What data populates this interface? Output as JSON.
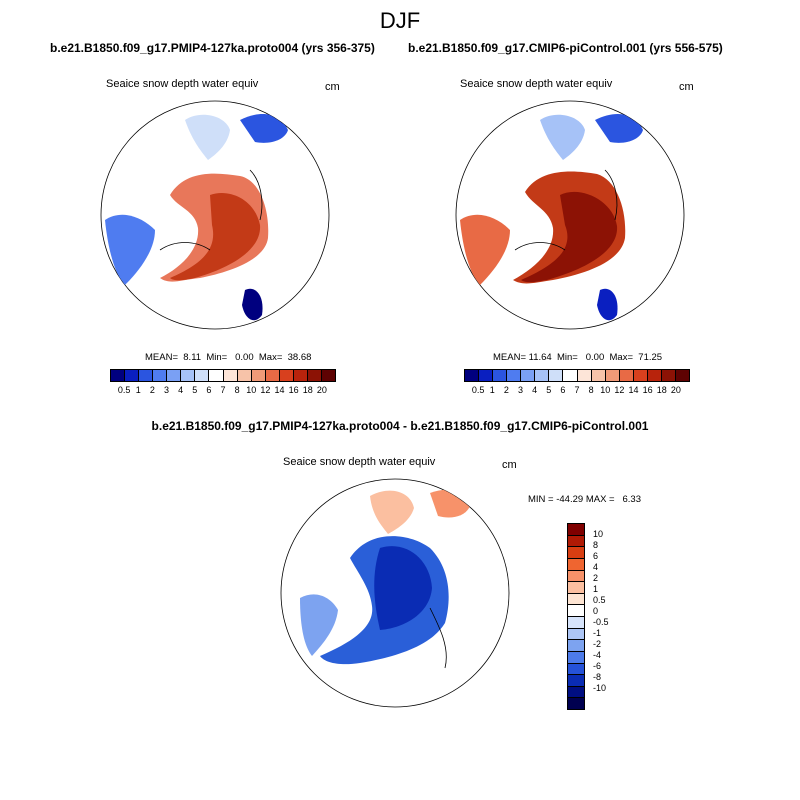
{
  "figure": {
    "title": "DJF",
    "panels": [
      {
        "title": "b.e21.B1850.f09_g17.PMIP4-127ka.proto004 (yrs 356-375)",
        "variable": "Seaice snow depth water equiv",
        "units": "cm",
        "stats": "MEAN=  8.11  Min=   0.00  Max=  38.68",
        "colorbar_ticks": [
          "0.5",
          "1",
          "2",
          "3",
          "4",
          "5",
          "6",
          "7",
          "8",
          "10",
          "12",
          "14",
          "16",
          "18",
          "20"
        ]
      },
      {
        "title": "b.e21.B1850.f09_g17.CMIP6-piControl.001 (yrs 556-575)",
        "variable": "Seaice snow depth water equiv",
        "units": "cm",
        "stats": "MEAN= 11.64  Min=   0.00  Max=  71.25",
        "colorbar_ticks": [
          "0.5",
          "1",
          "2",
          "3",
          "4",
          "5",
          "6",
          "7",
          "8",
          "10",
          "12",
          "14",
          "16",
          "18",
          "20"
        ]
      },
      {
        "title": "b.e21.B1850.f09_g17.PMIP4-127ka.proto004 - b.e21.B1850.f09_g17.CMIP6-piControl.001",
        "variable": "Seaice snow depth water equiv",
        "units": "cm",
        "stats": "MIN = -44.29 MAX =   6.33",
        "colorbar_ticks": [
          "10",
          "8",
          "6",
          "4",
          "2",
          "1",
          "0.5",
          "0",
          "-0.5",
          "-1",
          "-2",
          "-4",
          "-6",
          "-8",
          "-10"
        ]
      }
    ]
  },
  "colors": {
    "seq_scale": [
      "#00007f",
      "#0a1fc0",
      "#2b55e0",
      "#4f7cf0",
      "#7aa0f4",
      "#a6c2f7",
      "#cfdff9",
      "#ffffff",
      "#fde5d8",
      "#f7c3a9",
      "#f09a78",
      "#e86a45",
      "#d8401e",
      "#b8230c",
      "#8c1205",
      "#5e0202"
    ],
    "div_scale": [
      "#7f0000",
      "#b01a05",
      "#d83e12",
      "#ef6530",
      "#f7926a",
      "#fbbfa0",
      "#fde4d2",
      "#ffffff",
      "#d7e4fb",
      "#adc6f6",
      "#7da3f0",
      "#4d7bea",
      "#2552d8",
      "#0a2cb4",
      "#000e82"
    ],
    "ocean_warm_1": "#e8775a",
    "ocean_warm_2": "#c33a17",
    "diff_blue": "#2a5fd8"
  }
}
